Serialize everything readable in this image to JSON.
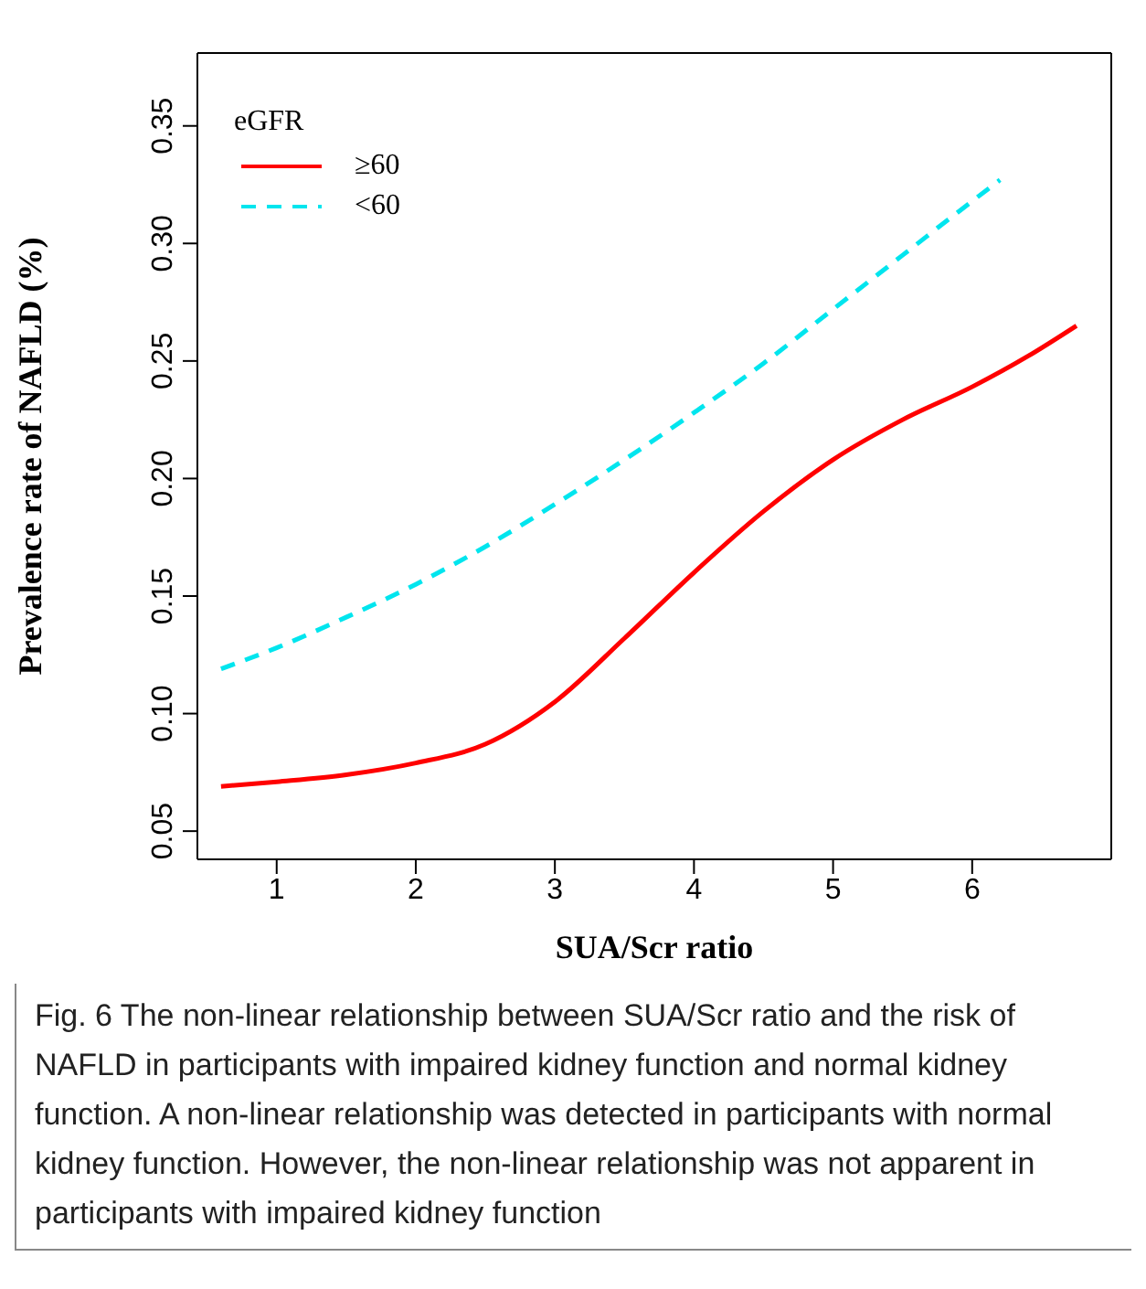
{
  "chart_data": {
    "type": "line",
    "xlabel": "SUA/Scr ratio",
    "ylabel": "Prevalence rate of NAFLD (%)",
    "legend_title": "eGFR",
    "legend": "top left",
    "grid": false,
    "marker": "none",
    "xlim": [
      0.43,
      7.0
    ],
    "xticks": [
      1,
      2,
      3,
      4,
      5,
      6
    ],
    "ylim": [
      0.038,
      0.381
    ],
    "yticks": [
      0.05,
      {
        "value": 0.1,
        "label": "0.10"
      },
      0.15,
      {
        "value": 0.2,
        "label": "0.20"
      },
      0.25,
      {
        "value": 0.3,
        "label": "0.30"
      },
      0.35
    ],
    "series": [
      {
        "name": "≥60",
        "color": "#ff0000",
        "line_style": "solid",
        "x": [
          0.6,
          1,
          1.5,
          2,
          2.5,
          3,
          3.5,
          4,
          4.5,
          5,
          5.5,
          6,
          6.4,
          6.75
        ],
        "values": [
          0.069,
          0.071,
          0.074,
          0.079,
          0.087,
          0.105,
          0.132,
          0.16,
          0.186,
          0.208,
          0.225,
          0.239,
          0.252,
          0.265
        ]
      },
      {
        "name": "<60",
        "color": "#00e5ee",
        "line_style": "dashed",
        "x": [
          0.6,
          1,
          1.5,
          2,
          2.5,
          3,
          3.5,
          4,
          4.5,
          5,
          5.5,
          6,
          6.2
        ],
        "values": [
          0.119,
          0.128,
          0.141,
          0.155,
          0.171,
          0.189,
          0.208,
          0.228,
          0.249,
          0.272,
          0.295,
          0.318,
          0.327
        ]
      }
    ],
    "annotations": [
      "Fig. 6  The non-linear relationship between SUA/Scr ratio and the risk of NAFLD in participants with impaired kidney function and normal kidney function. A non-linear relationship was detected in participants with normal kidney function. However, the non-linear relationship was not apparent in participants with impaired kidney function"
    ]
  }
}
